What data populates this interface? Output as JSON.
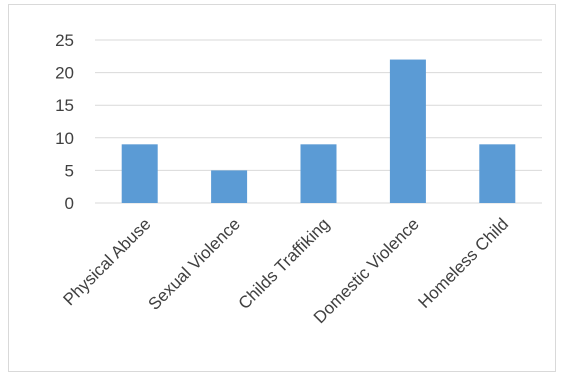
{
  "chart_data": {
    "type": "bar",
    "title": "",
    "xlabel": "",
    "ylabel": "",
    "categories": [
      "Physical Abuse",
      "Sexual Violence",
      "Childs Traffiking",
      "Domestic Violence",
      "Homeless Child"
    ],
    "values": [
      9,
      5,
      9,
      22,
      9
    ],
    "ylim": [
      0,
      25
    ],
    "yticks": [
      "0",
      "5",
      "10",
      "15",
      "20",
      "25"
    ],
    "grid": true,
    "legend": "none",
    "colors": {
      "bar": "#5b9bd5",
      "grid": "#d9d9d9",
      "text": "#404040",
      "border": "#d9d9d9"
    }
  }
}
